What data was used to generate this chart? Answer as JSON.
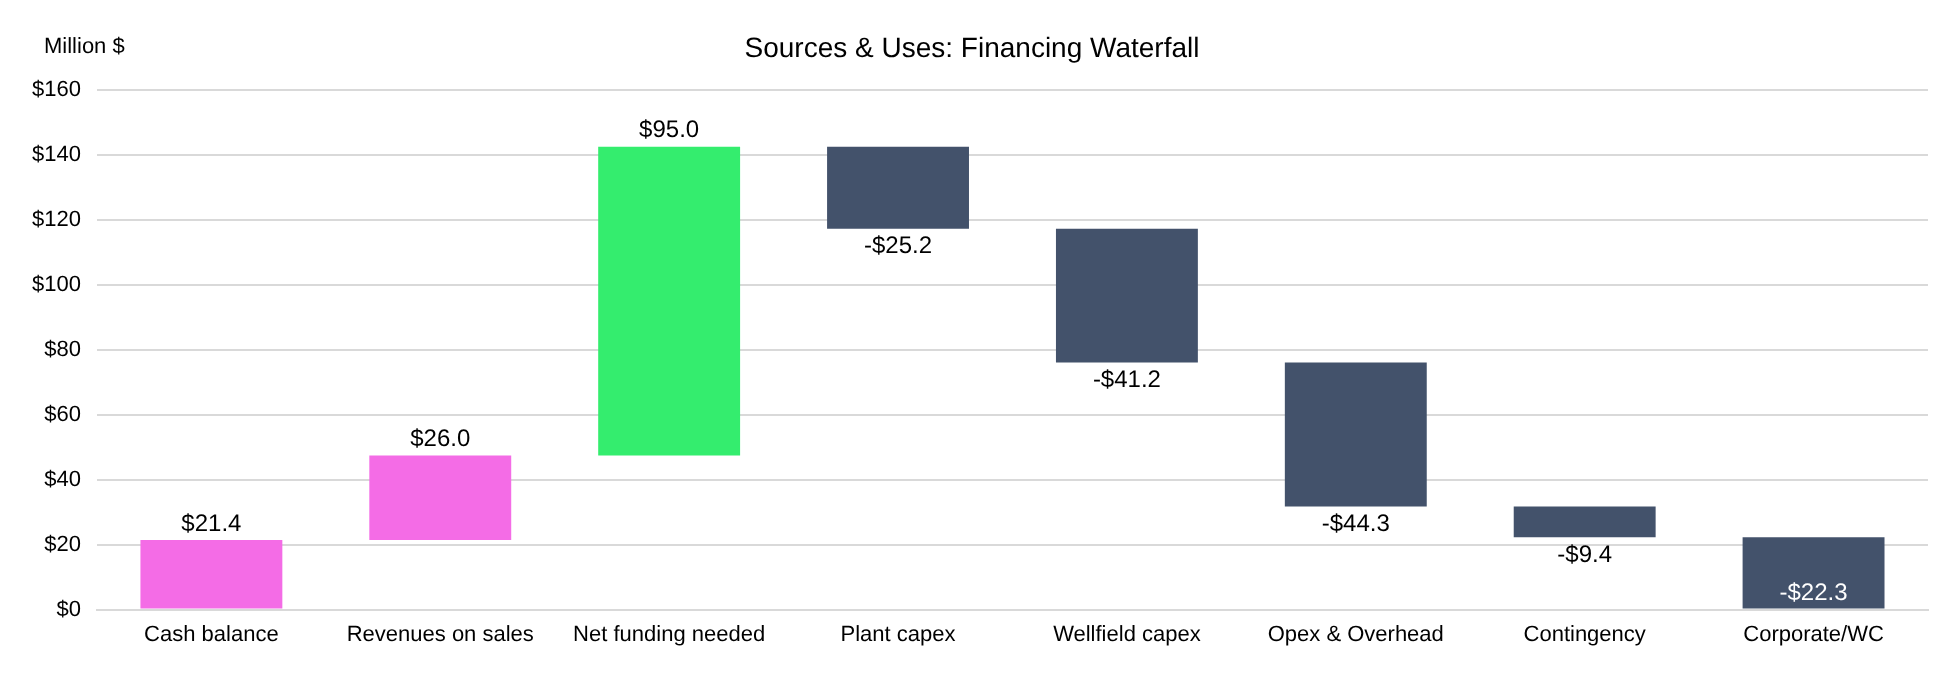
{
  "chart_data": {
    "type": "bar",
    "title": "Sources & Uses: Financing Waterfall",
    "ylabel": "Million $",
    "categories": [
      "Cash balance",
      "Revenues on sales",
      "Net funding needed",
      "Plant capex",
      "Wellfield capex",
      "Opex & Overhead",
      "Contingency",
      "Corporate/WC"
    ],
    "values": [
      21.4,
      26.0,
      95.0,
      -25.2,
      -41.2,
      -44.3,
      -9.4,
      -22.3
    ],
    "base": [
      0,
      21.4,
      47.4,
      142.4,
      117.2,
      76.0,
      31.7,
      22.3
    ],
    "colors": [
      "#f46ce6",
      "#f46ce6",
      "#34ed6e",
      "#43526b",
      "#43526b",
      "#43526b",
      "#43526b",
      "#43526b"
    ],
    "value_labels": [
      "$21.4",
      "$26.0",
      "$95.0",
      "-$25.2",
      "-$41.2",
      "-$44.3",
      "-$9.4",
      "-$22.3"
    ],
    "ylim": [
      0,
      160
    ],
    "yticks": [
      {
        "value": 0,
        "label": "$0"
      },
      {
        "value": 20,
        "label": "$20"
      },
      {
        "value": 40,
        "label": "$40"
      },
      {
        "value": 60,
        "label": "$60"
      },
      {
        "value": 80,
        "label": "$80"
      },
      {
        "value": 100,
        "label": "$100"
      },
      {
        "value": 120,
        "label": "$120"
      },
      {
        "value": 140,
        "label": "$140"
      },
      {
        "value": 160,
        "label": "$160"
      }
    ],
    "grid": "y",
    "legend": false
  }
}
